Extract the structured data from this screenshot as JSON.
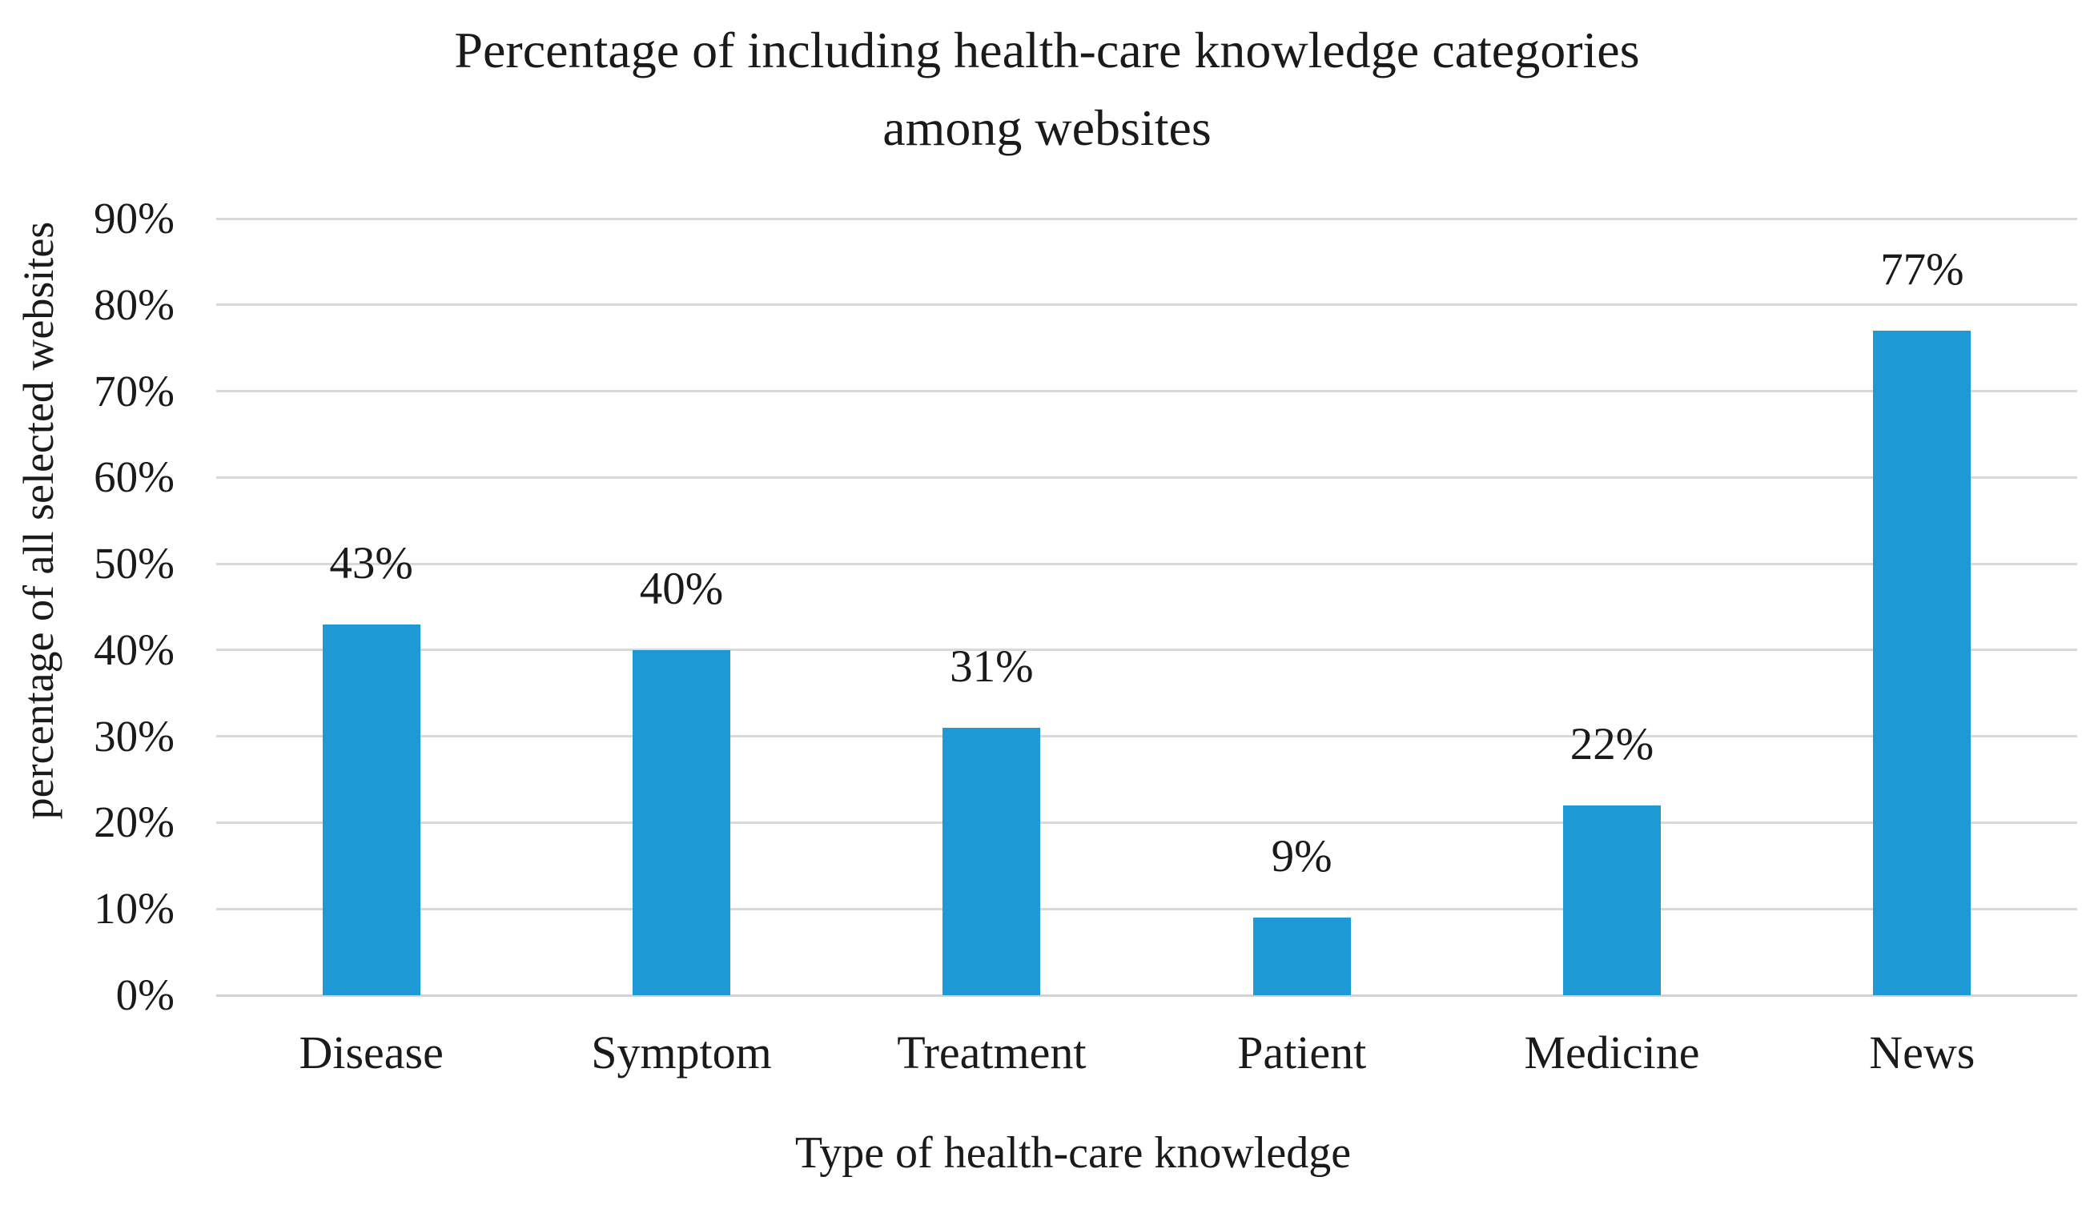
{
  "chart_data": {
    "type": "bar",
    "title": "Percentage of including health-care knowledge categories among websites",
    "title_lines": [
      "Percentage of including health-care knowledge categories",
      "among websites"
    ],
    "xlabel": "Type of health-care knowledge",
    "ylabel": "percentage of all selected websites",
    "categories": [
      "Disease",
      "Symptom",
      "Treatment",
      "Patient",
      "Medicine",
      "News"
    ],
    "values": [
      43,
      40,
      31,
      9,
      22,
      77
    ],
    "value_labels": [
      "43%",
      "40%",
      "31%",
      "9%",
      "22%",
      "77%"
    ],
    "ylim": [
      0,
      90
    ],
    "ytick_step": 10,
    "ytick_labels": [
      "0%",
      "10%",
      "20%",
      "30%",
      "40%",
      "50%",
      "60%",
      "70%",
      "80%",
      "90%"
    ],
    "grid": "horizontal",
    "legend": "none",
    "colors": {
      "bar": "#1d9ad6",
      "gridline": "#d9d9d9",
      "axis_line": "#d2d2d2",
      "text": "#1a1a1a",
      "background": "#ffffff"
    }
  }
}
